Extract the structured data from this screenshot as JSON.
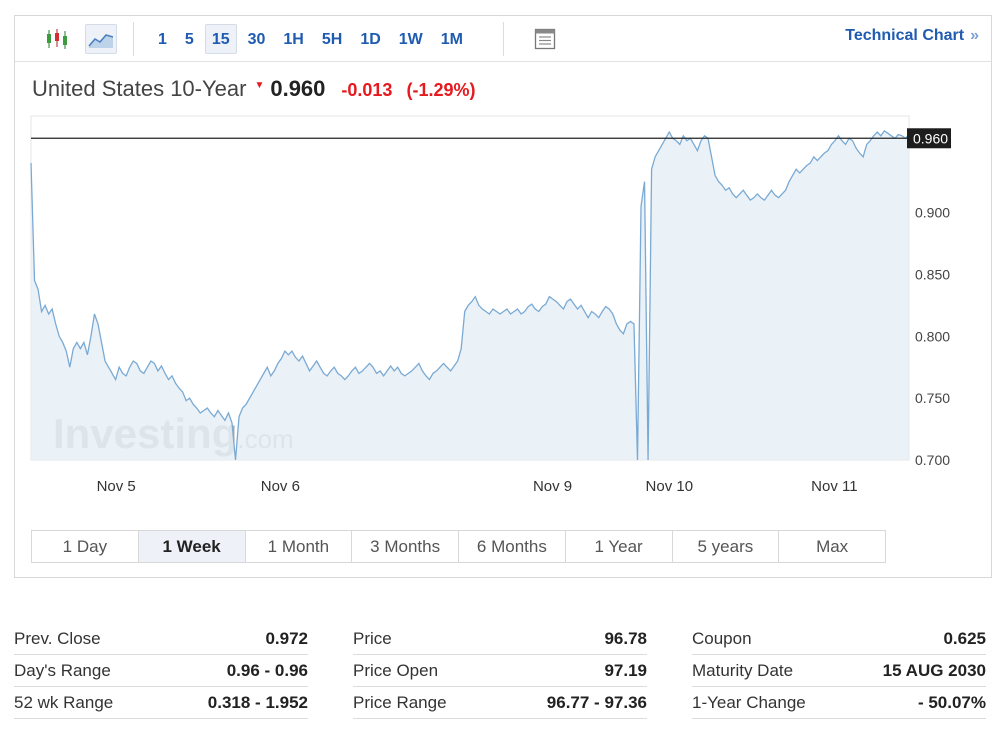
{
  "toolbar": {
    "chart_type_icons": [
      "candlestick-icon",
      "area-line-icon"
    ],
    "intervals": [
      {
        "label": "1",
        "active": false
      },
      {
        "label": "5",
        "active": false
      },
      {
        "label": "15",
        "active": true
      },
      {
        "label": "30",
        "active": false
      },
      {
        "label": "1H",
        "active": false
      },
      {
        "label": "5H",
        "active": false
      },
      {
        "label": "1D",
        "active": false
      },
      {
        "label": "1W",
        "active": false
      },
      {
        "label": "1M",
        "active": false
      }
    ],
    "settings_icon": "chart-settings-icon",
    "technical_chart_label": "Technical Chart",
    "technical_chart_arrow": "»"
  },
  "instrument": {
    "name": "United States 10-Year",
    "last": "0.960",
    "change": "-0.013",
    "change_pct": "(-1.29%)",
    "down_color": "#e5191e"
  },
  "chart_data": {
    "type": "area",
    "title": "",
    "xlabel": "",
    "ylabel": "",
    "x_tick_labels": [
      "Nov 5",
      "Nov 6",
      "Nov 9",
      "Nov 10",
      "Nov 11"
    ],
    "y_tick_labels": [
      "0.700",
      "0.750",
      "0.800",
      "0.850",
      "0.900"
    ],
    "ylim": [
      0.7,
      0.978
    ],
    "grid": false,
    "current_value_label": "0.960",
    "current_value": 0.96,
    "watermark": "Investing.com",
    "line_color": "#7aaad4",
    "fill_color": "#e6eef6",
    "series": [
      {
        "values": [
          0.94,
          0.845,
          0.838,
          0.82,
          0.825,
          0.818,
          0.822,
          0.81,
          0.8,
          0.795,
          0.788,
          0.775,
          0.79,
          0.795,
          0.79,
          0.795,
          0.785,
          0.8,
          0.818,
          0.81,
          0.795,
          0.78,
          0.775,
          0.77,
          0.765,
          0.775,
          0.77,
          0.768,
          0.775,
          0.78,
          0.778,
          0.772,
          0.77,
          0.775,
          0.78,
          0.778,
          0.772,
          0.776,
          0.77,
          0.765,
          0.768,
          0.762,
          0.758,
          0.755,
          0.748,
          0.75,
          0.745,
          0.742,
          0.738,
          0.74,
          0.742,
          0.738,
          0.735,
          0.74,
          0.736,
          0.732,
          0.738,
          0.73,
          0.7,
          0.735,
          0.742,
          0.745,
          0.75,
          0.755,
          0.76,
          0.765,
          0.77,
          0.775,
          0.768,
          0.772,
          0.778,
          0.782,
          0.788,
          0.785,
          0.788,
          0.783,
          0.78,
          0.784,
          0.778,
          0.772,
          0.776,
          0.78,
          0.775,
          0.77,
          0.768,
          0.772,
          0.775,
          0.77,
          0.768,
          0.765,
          0.768,
          0.772,
          0.775,
          0.77,
          0.772,
          0.775,
          0.778,
          0.775,
          0.77,
          0.772,
          0.768,
          0.772,
          0.776,
          0.772,
          0.775,
          0.77,
          0.768,
          0.77,
          0.772,
          0.775,
          0.778,
          0.772,
          0.768,
          0.765,
          0.77,
          0.772,
          0.775,
          0.778,
          0.775,
          0.772,
          0.776,
          0.78,
          0.79,
          0.82,
          0.825,
          0.828,
          0.832,
          0.825,
          0.822,
          0.82,
          0.818,
          0.822,
          0.82,
          0.818,
          0.82,
          0.822,
          0.818,
          0.82,
          0.822,
          0.818,
          0.82,
          0.824,
          0.826,
          0.822,
          0.82,
          0.824,
          0.826,
          0.832,
          0.83,
          0.828,
          0.825,
          0.822,
          0.828,
          0.83,
          0.826,
          0.822,
          0.825,
          0.82,
          0.815,
          0.82,
          0.818,
          0.815,
          0.82,
          0.824,
          0.822,
          0.818,
          0.81,
          0.805,
          0.802,
          0.81,
          0.812,
          0.81,
          0.7,
          0.905,
          0.925,
          0.7,
          0.935,
          0.945,
          0.95,
          0.955,
          0.96,
          0.965,
          0.96,
          0.958,
          0.955,
          0.962,
          0.958,
          0.96,
          0.955,
          0.95,
          0.958,
          0.962,
          0.96,
          0.945,
          0.93,
          0.925,
          0.922,
          0.918,
          0.92,
          0.915,
          0.912,
          0.915,
          0.918,
          0.914,
          0.91,
          0.912,
          0.915,
          0.912,
          0.91,
          0.914,
          0.918,
          0.914,
          0.912,
          0.915,
          0.918,
          0.925,
          0.93,
          0.935,
          0.932,
          0.935,
          0.938,
          0.94,
          0.945,
          0.942,
          0.945,
          0.948,
          0.95,
          0.955,
          0.958,
          0.962,
          0.958,
          0.955,
          0.96,
          0.958,
          0.952,
          0.948,
          0.945,
          0.955,
          0.958,
          0.962,
          0.965,
          0.962,
          0.966,
          0.964,
          0.962,
          0.96,
          0.963,
          0.962,
          0.96,
          0.963
        ]
      }
    ]
  },
  "ranges": [
    {
      "label": "1 Day",
      "active": false
    },
    {
      "label": "1 Week",
      "active": true
    },
    {
      "label": "1 Month",
      "active": false
    },
    {
      "label": "3 Months",
      "active": false
    },
    {
      "label": "6 Months",
      "active": false
    },
    {
      "label": "1 Year",
      "active": false
    },
    {
      "label": "5 years",
      "active": false
    },
    {
      "label": "Max",
      "active": false
    }
  ],
  "stats": [
    [
      {
        "label": "Prev. Close",
        "value": "0.972"
      },
      {
        "label": "Day's Range",
        "value": "0.96 - 0.96"
      },
      {
        "label": "52 wk Range",
        "value": "0.318 - 1.952"
      }
    ],
    [
      {
        "label": "Price",
        "value": "96.78"
      },
      {
        "label": "Price Open",
        "value": "97.19"
      },
      {
        "label": "Price Range",
        "value": "96.77 - 97.36"
      }
    ],
    [
      {
        "label": "Coupon",
        "value": "0.625"
      },
      {
        "label": "Maturity Date",
        "value": "15 AUG 2030"
      },
      {
        "label": "1-Year Change",
        "value": "- 50.07%"
      }
    ]
  ]
}
